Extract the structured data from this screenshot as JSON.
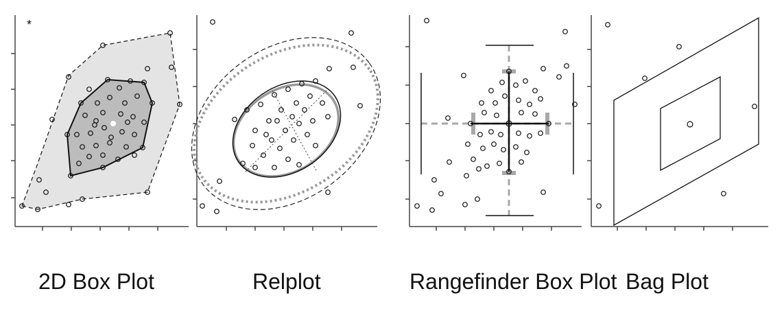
{
  "labels": {
    "box2d": "2D Box Plot",
    "relplot": "Relplot",
    "rangefinder": "Rangefinder Box Plot",
    "bagplot": "Bag Plot"
  },
  "outlier_marker": "*",
  "colors": {
    "ink": "#111111",
    "hull_fill": "#e4e4e4",
    "bag_fill": "#bcbcbc",
    "dash_gray": "#a8a8a8",
    "axis": "#444444"
  }
}
